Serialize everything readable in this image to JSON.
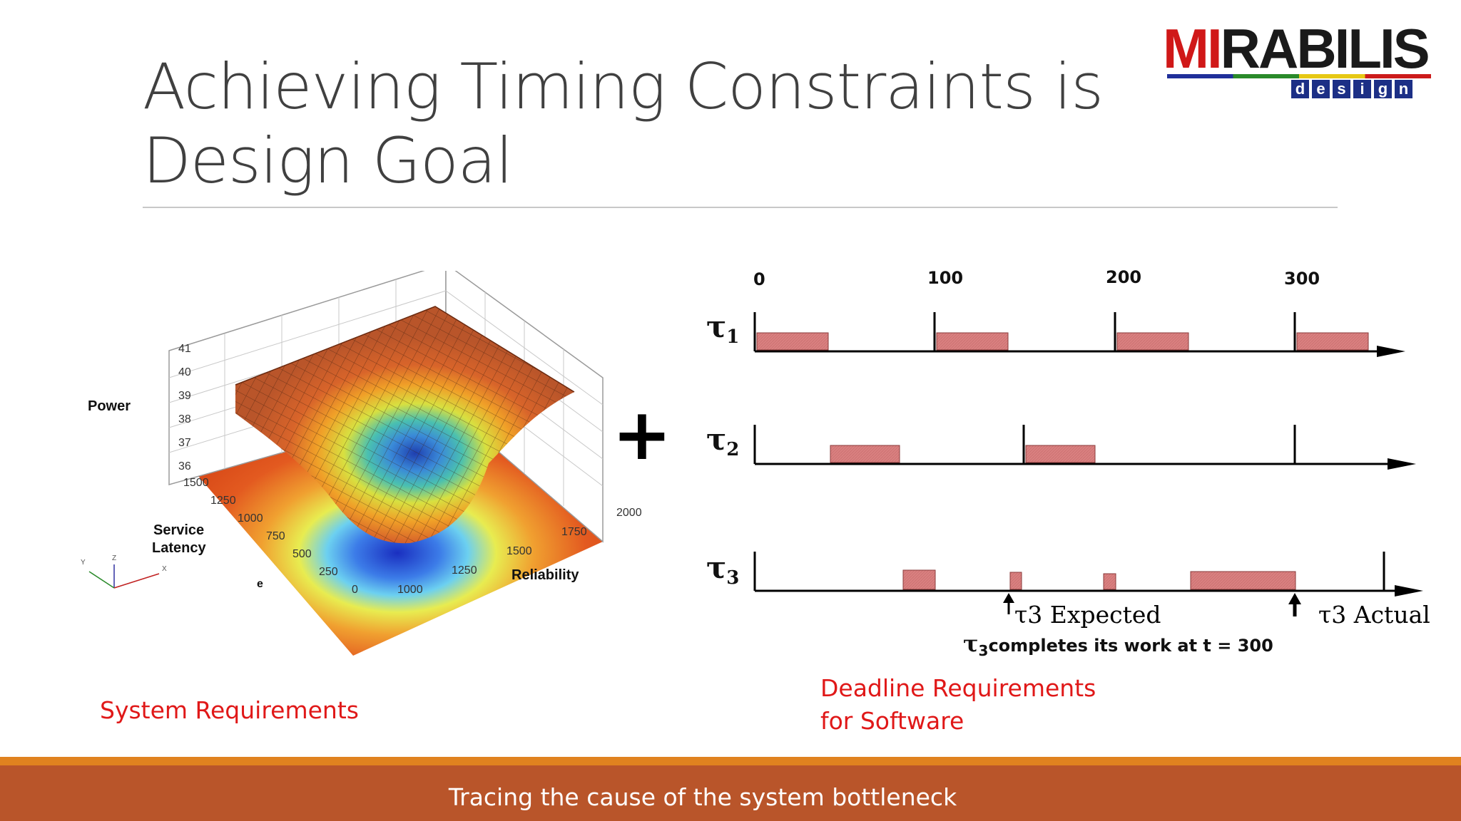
{
  "slide": {
    "title": "Achieving Timing Constraints is Design Goal",
    "footer": "Tracing the cause of the system bottleneck",
    "left_caption": "System Requirements",
    "right_caption_line1": "Deadline Requirements",
    "right_caption_line2": "for Software"
  },
  "logo": {
    "word_red": "MI",
    "word_black": "RABILIS",
    "sub": [
      "d",
      "e",
      "s",
      "i",
      "g",
      "n"
    ]
  },
  "surface_plot": {
    "z_label": "Power",
    "y_label_line1": "Service",
    "y_label_line2": "Latency",
    "x_label": "Reliability",
    "z_ticks": [
      "41",
      "40",
      "39",
      "38",
      "37",
      "36"
    ],
    "y_ticks": [
      "1500",
      "1250",
      "1000",
      "750",
      "500",
      "250",
      "0"
    ],
    "x_ticks": [
      "1000",
      "1250",
      "1500",
      "1750",
      "2000"
    ],
    "axis_icon_labels": [
      "Y",
      "Z",
      "X"
    ],
    "stray_label": "e"
  },
  "plus_sign": "+",
  "timing": {
    "time_labels": [
      "0",
      "100",
      "200",
      "300"
    ],
    "task_labels": [
      {
        "sym": "τ",
        "sub": "1"
      },
      {
        "sym": "τ",
        "sub": "2"
      },
      {
        "sym": "τ",
        "sub": "3"
      }
    ],
    "expected_label": "τ3 Expected",
    "actual_label": "τ3 Actual",
    "note_sym": "τ",
    "note_sub": "3",
    "note_text": "completes its work at t = 300",
    "colors": {
      "block_fill": "#d98080",
      "block_stroke": "#8a3a3a"
    }
  }
}
